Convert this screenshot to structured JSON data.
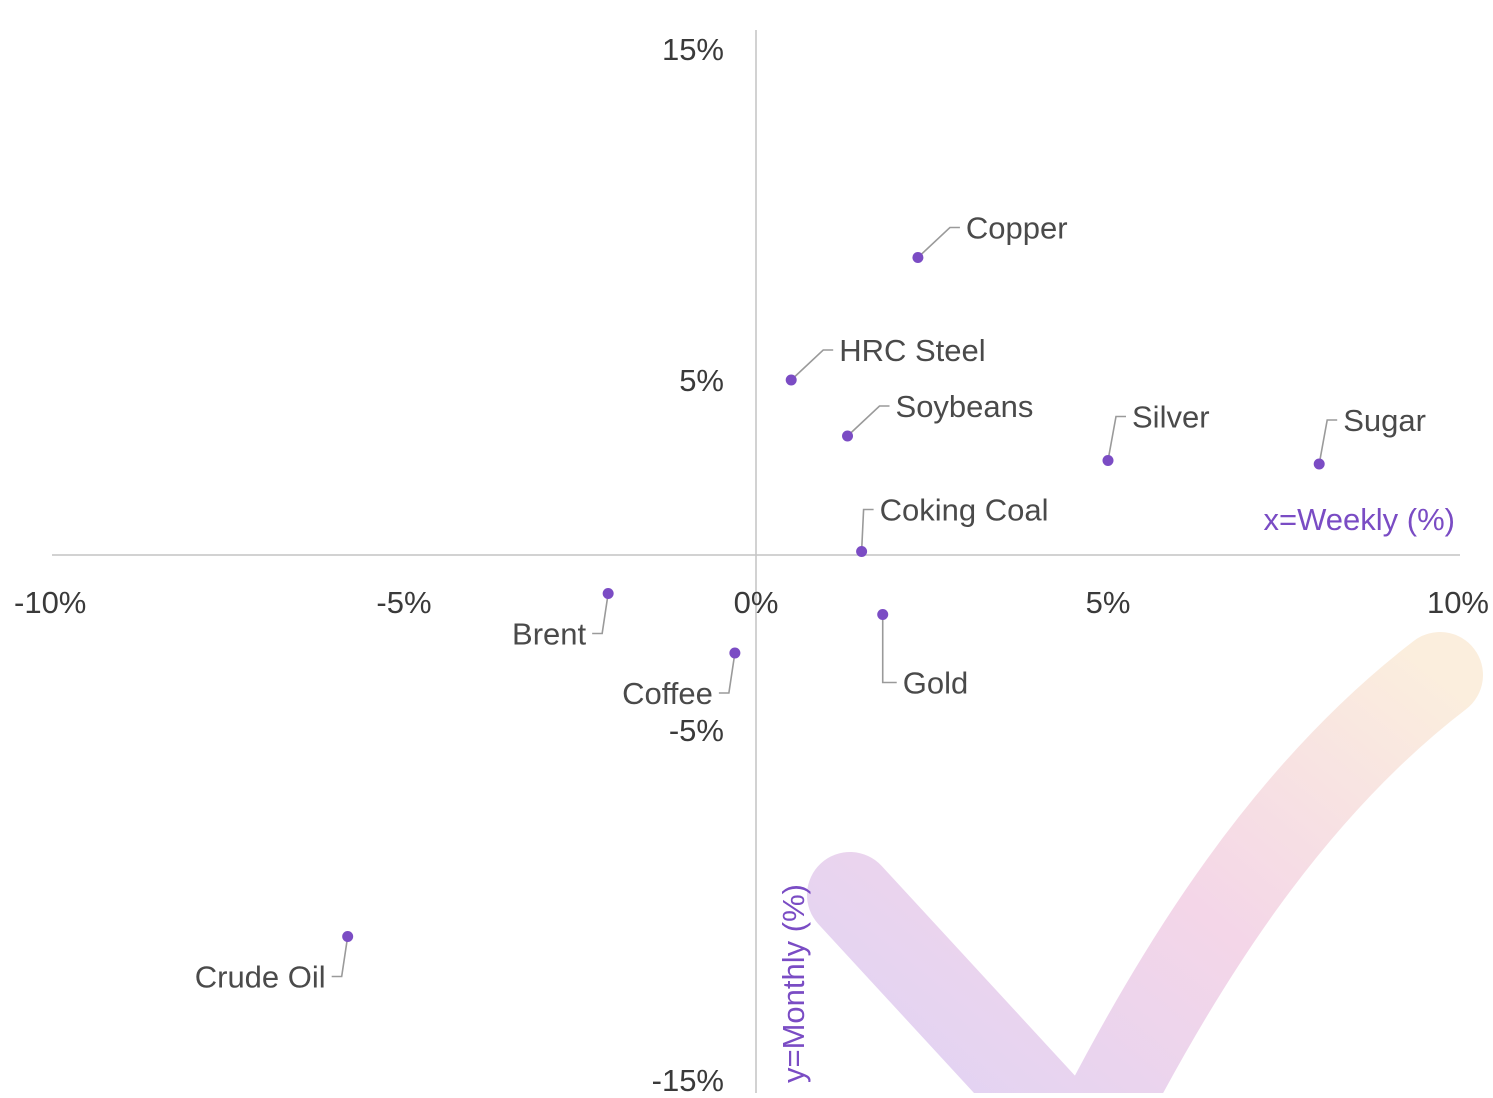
{
  "chart_data": {
    "type": "scatter",
    "title": "",
    "xlabel": "x=Weekly (%)",
    "ylabel": "y=Monthly (%)",
    "xlim": [
      -10,
      10
    ],
    "ylim": [
      -15,
      15
    ],
    "x_ticks": [
      "-10%",
      "-5%",
      "0%",
      "5%",
      "10%"
    ],
    "x_tick_values": [
      -10,
      -5,
      0,
      5,
      10
    ],
    "y_ticks": [
      "15%",
      "5%",
      "-5%",
      "-15%"
    ],
    "y_tick_values": [
      15,
      5,
      -5,
      -15
    ],
    "grid": false,
    "point_color": "#7b4cc4",
    "axis_title_color": "#7a4cc4",
    "points": [
      {
        "name": "Copper",
        "x": 2.3,
        "y": 8.5,
        "label_side": "right"
      },
      {
        "name": "HRC Steel",
        "x": 0.5,
        "y": 5.0,
        "label_side": "right"
      },
      {
        "name": "Soybeans",
        "x": 1.3,
        "y": 3.4,
        "label_side": "right"
      },
      {
        "name": "Silver",
        "x": 5.0,
        "y": 2.7,
        "label_side": "right"
      },
      {
        "name": "Sugar",
        "x": 8.0,
        "y": 2.6,
        "label_side": "right"
      },
      {
        "name": "Coking Coal",
        "x": 1.5,
        "y": 0.1,
        "label_side": "right"
      },
      {
        "name": "Gold",
        "x": 1.8,
        "y": -1.7,
        "label_side": "right"
      },
      {
        "name": "Brent",
        "x": -2.1,
        "y": -1.1,
        "label_side": "left"
      },
      {
        "name": "Coffee",
        "x": -0.3,
        "y": -2.8,
        "label_side": "left"
      },
      {
        "name": "Crude Oil",
        "x": -5.8,
        "y": -10.9,
        "label_side": "left"
      }
    ]
  },
  "decoration": {
    "name": "checkmark-watermark",
    "colors": [
      "#ddd2f6",
      "#f4d6e8",
      "#fbeedd"
    ]
  }
}
